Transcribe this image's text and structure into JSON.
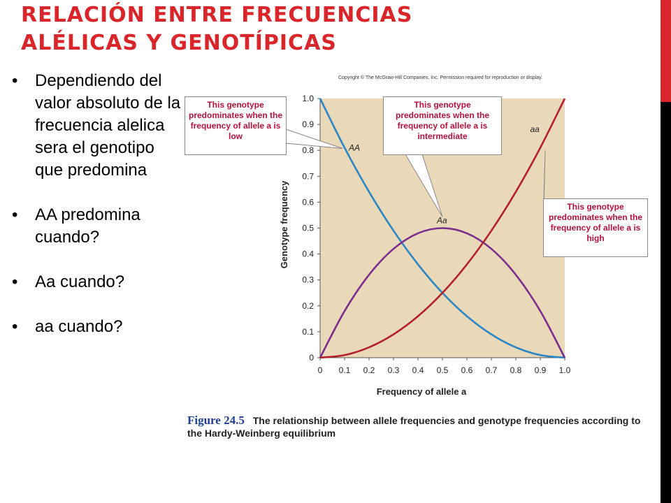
{
  "slide": {
    "title_line1": "Relación entre frecuencias",
    "title_line2": "alélicas y genotípicas",
    "bullets": [
      "Dependiendo del valor absoluto de la frecuencia alelica sera el genotipo que predomina",
      "AA predomina cuando?",
      "Aa cuando?",
      "aa cuando?"
    ],
    "accent_color": "#d9262b"
  },
  "figure": {
    "copyright": "Copyright © The McGraw-Hill Companies, Inc. Permission required for reproduction or display.",
    "callouts": {
      "low": "This genotype predominates when the frequency of allele a is low",
      "intermediate": "This genotype predominates when the frequency of allele a is intermediate",
      "high": "This genotype predominates when the frequency of allele a is high"
    },
    "caption_number": "Figure 24.5",
    "caption_text": "The relationship between allele frequencies and genotype frequencies according to the Hardy-Weinberg equilibrium"
  },
  "chart_data": {
    "type": "line",
    "xlabel": "Frequency of allele a",
    "ylabel": "Genotype frequency",
    "xlim": [
      0,
      1.0
    ],
    "ylim": [
      0,
      1.0
    ],
    "xticks": [
      "0",
      "0.1",
      "0.2",
      "0.3",
      "0.4",
      "0.5",
      "0.6",
      "0.7",
      "0.8",
      "0.9",
      "1.0"
    ],
    "yticks": [
      "0",
      "0.1",
      "0.2",
      "0.3",
      "0.4",
      "0.5",
      "0.6",
      "0.7",
      "0.8",
      "0.9",
      "1.0"
    ],
    "background_color": "#ead9b8",
    "x": [
      0,
      0.1,
      0.2,
      0.3,
      0.4,
      0.5,
      0.6,
      0.7,
      0.8,
      0.9,
      1.0
    ],
    "series": [
      {
        "name": "AA",
        "color": "#2b86c5",
        "values": [
          1.0,
          0.81,
          0.64,
          0.49,
          0.36,
          0.25,
          0.16,
          0.09,
          0.04,
          0.01,
          0
        ]
      },
      {
        "name": "Aa",
        "color": "#7b2d8e",
        "values": [
          0,
          0.18,
          0.32,
          0.42,
          0.48,
          0.5,
          0.48,
          0.42,
          0.32,
          0.18,
          0
        ]
      },
      {
        "name": "aa",
        "color": "#b3202a",
        "values": [
          0,
          0.01,
          0.04,
          0.09,
          0.16,
          0.25,
          0.36,
          0.49,
          0.64,
          0.81,
          1.0
        ]
      }
    ]
  }
}
